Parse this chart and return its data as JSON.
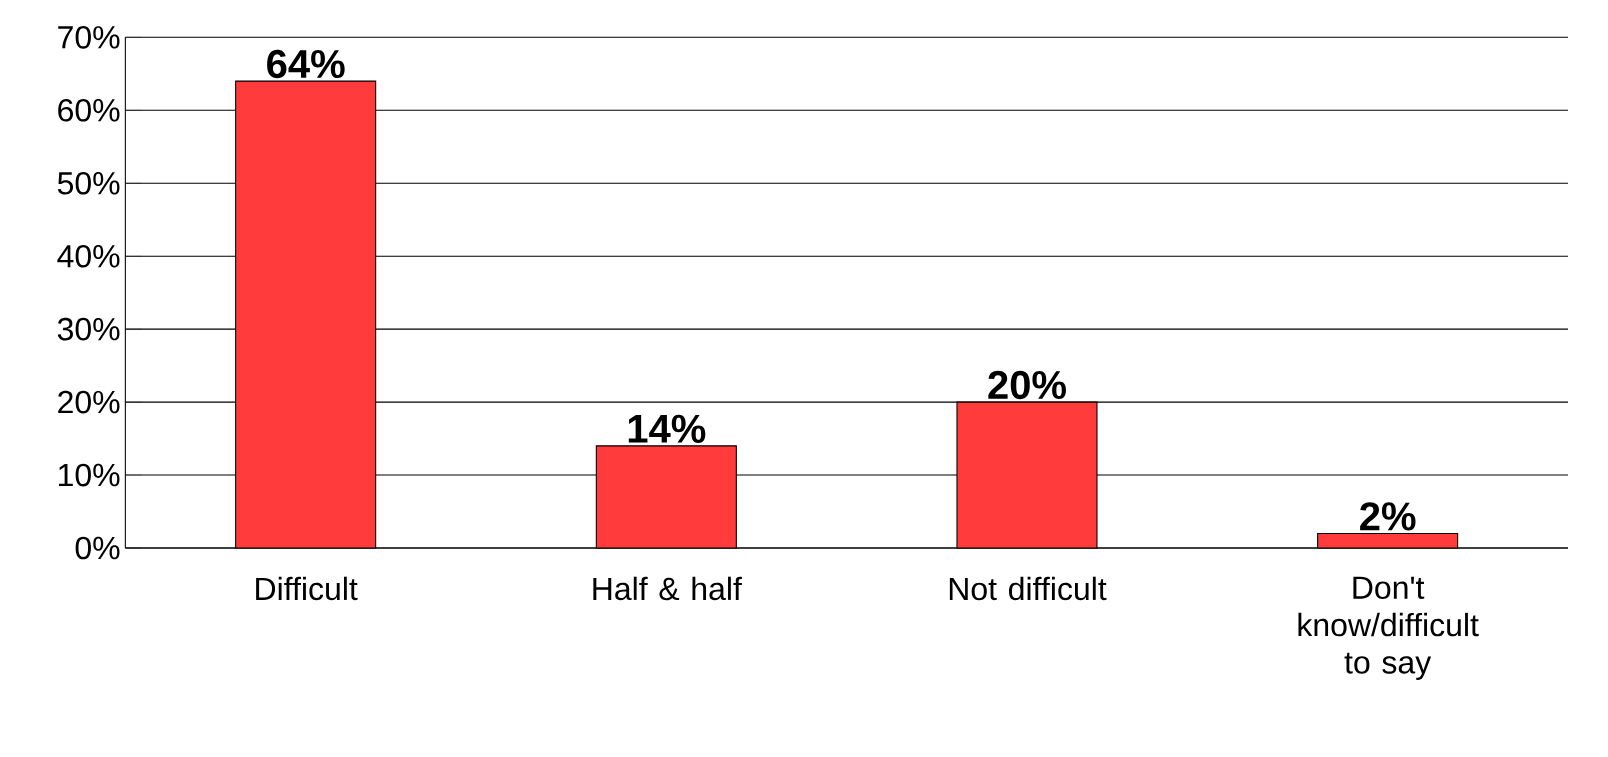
{
  "chart_data": {
    "type": "bar",
    "categories": [
      "Difficult",
      "Half & half",
      "Not difficult",
      "Don't know/difficult to say"
    ],
    "values": [
      64,
      14,
      20,
      2
    ],
    "value_labels": [
      "64%",
      "14%",
      "20%",
      "2%"
    ],
    "color": "#ff3b3b",
    "ylim": [
      0,
      70
    ],
    "yticks": [
      {
        "value": 0,
        "label": "0%"
      },
      {
        "value": 10,
        "label": "10%"
      },
      {
        "value": 20,
        "label": "20%"
      },
      {
        "value": 30,
        "label": "30%"
      },
      {
        "value": 40,
        "label": "40%"
      },
      {
        "value": 50,
        "label": "50%"
      },
      {
        "value": 60,
        "label": "60%"
      },
      {
        "value": 70,
        "label": "70%"
      }
    ],
    "grid": "y"
  }
}
